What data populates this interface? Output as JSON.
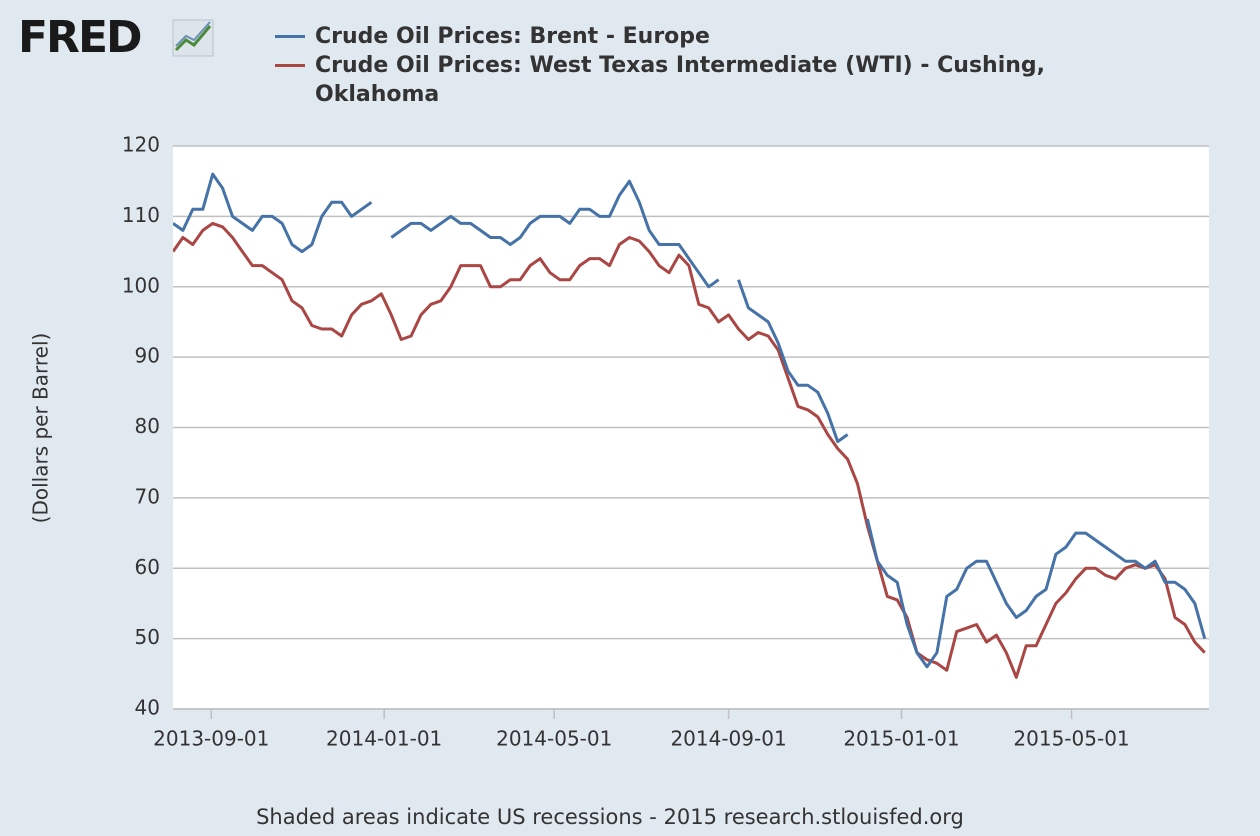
{
  "logo": "FRED",
  "chart_data": {
    "type": "line",
    "y_label": "(Dollars per Barrel)",
    "footer": "Shaded areas indicate US recessions - 2015 research.stlouisfed.org",
    "x": [
      "2013-08-05",
      "2013-08-12",
      "2013-08-19",
      "2013-08-26",
      "2013-09-02",
      "2013-09-09",
      "2013-09-16",
      "2013-09-23",
      "2013-09-30",
      "2013-10-07",
      "2013-10-14",
      "2013-10-21",
      "2013-10-28",
      "2013-11-04",
      "2013-11-11",
      "2013-11-18",
      "2013-11-25",
      "2013-12-02",
      "2013-12-09",
      "2013-12-16",
      "2013-12-23",
      "2013-12-30",
      "2014-01-06",
      "2014-01-13",
      "2014-01-20",
      "2014-01-27",
      "2014-02-03",
      "2014-02-10",
      "2014-02-17",
      "2014-02-24",
      "2014-03-03",
      "2014-03-10",
      "2014-03-17",
      "2014-03-24",
      "2014-03-31",
      "2014-04-07",
      "2014-04-14",
      "2014-04-21",
      "2014-04-28",
      "2014-05-05",
      "2014-05-12",
      "2014-05-19",
      "2014-05-26",
      "2014-06-02",
      "2014-06-09",
      "2014-06-16",
      "2014-06-23",
      "2014-06-30",
      "2014-07-07",
      "2014-07-14",
      "2014-07-21",
      "2014-07-28",
      "2014-08-04",
      "2014-08-11",
      "2014-08-18",
      "2014-08-25",
      "2014-09-01",
      "2014-09-08",
      "2014-09-15",
      "2014-09-22",
      "2014-09-29",
      "2014-10-06",
      "2014-10-13",
      "2014-10-20",
      "2014-10-27",
      "2014-11-03",
      "2014-11-10",
      "2014-11-17",
      "2014-11-24",
      "2014-12-01",
      "2014-12-08",
      "2014-12-15",
      "2014-12-22",
      "2014-12-29",
      "2015-01-05",
      "2015-01-12",
      "2015-01-19",
      "2015-01-26",
      "2015-02-02",
      "2015-02-09",
      "2015-02-16",
      "2015-02-23",
      "2015-03-02",
      "2015-03-09",
      "2015-03-16",
      "2015-03-23",
      "2015-03-30",
      "2015-04-06",
      "2015-04-13",
      "2015-04-20",
      "2015-04-27",
      "2015-05-04",
      "2015-05-11",
      "2015-05-18",
      "2015-05-25",
      "2015-06-01",
      "2015-06-08",
      "2015-06-15",
      "2015-06-22",
      "2015-06-29",
      "2015-07-06",
      "2015-07-13",
      "2015-07-20",
      "2015-07-27",
      "2015-08-03"
    ],
    "series": [
      {
        "name": "Crude Oil Prices: Brent - Europe",
        "color": "#4572a7",
        "values": [
          109,
          108,
          111,
          111,
          116,
          114,
          110,
          109,
          108,
          110,
          110,
          109,
          106,
          105,
          106,
          110,
          112,
          112,
          110,
          111,
          112,
          null,
          107,
          108,
          109,
          109,
          108,
          109,
          110,
          109,
          109,
          108,
          107,
          107,
          106,
          107,
          109,
          110,
          110,
          110,
          109,
          111,
          111,
          110,
          110,
          113,
          115,
          112,
          108,
          106,
          106,
          106,
          104,
          102,
          100,
          101,
          null,
          101,
          97,
          96,
          95,
          92,
          88,
          86,
          86,
          85,
          82,
          78,
          79,
          null,
          67,
          61,
          59,
          58,
          52,
          48,
          46,
          48,
          56,
          57,
          60,
          61,
          61,
          58,
          55,
          53,
          54,
          56,
          57,
          62,
          63,
          65,
          65,
          64,
          63,
          62,
          61,
          61,
          60,
          61,
          58,
          58,
          57,
          55,
          50
        ]
      },
      {
        "name": "Crude Oil Prices: West Texas Intermediate (WTI) - Cushing, Oklahoma",
        "color": "#aa4643",
        "values": [
          105,
          107,
          106,
          108,
          109,
          108.5,
          107,
          105,
          103,
          103,
          102,
          101,
          98,
          97,
          94.5,
          94,
          94,
          93,
          96,
          97.5,
          98,
          99,
          96,
          92.5,
          93,
          96,
          97.5,
          98,
          100,
          103,
          103,
          103,
          100,
          100,
          101,
          101,
          103,
          104,
          102,
          101,
          101,
          103,
          104,
          104,
          103,
          106,
          107,
          106.5,
          105,
          103,
          102,
          104.5,
          103,
          97.5,
          97,
          95,
          96,
          94,
          92.5,
          93.5,
          93,
          91,
          87,
          83,
          82.5,
          81.5,
          79,
          77,
          75.5,
          72,
          66,
          61,
          56,
          55.5,
          53,
          48,
          47,
          46.5,
          45.5,
          51,
          51.5,
          52,
          49.5,
          50.5,
          48,
          44.5,
          49,
          49,
          52,
          55,
          56.5,
          58.5,
          60,
          60,
          59,
          58.5,
          60,
          60.5,
          60,
          60.5,
          58.5,
          53,
          52,
          49.5,
          48
        ]
      }
    ],
    "xlim": [
      "2013-08-05",
      "2015-08-06"
    ],
    "xticks": [
      "2013-09-01",
      "2014-01-01",
      "2014-05-01",
      "2014-09-01",
      "2015-01-01",
      "2015-05-01"
    ],
    "ylim": [
      40,
      120
    ],
    "yticks": [
      40,
      50,
      60,
      70,
      80,
      90,
      100,
      110,
      120
    ],
    "grid": true
  }
}
